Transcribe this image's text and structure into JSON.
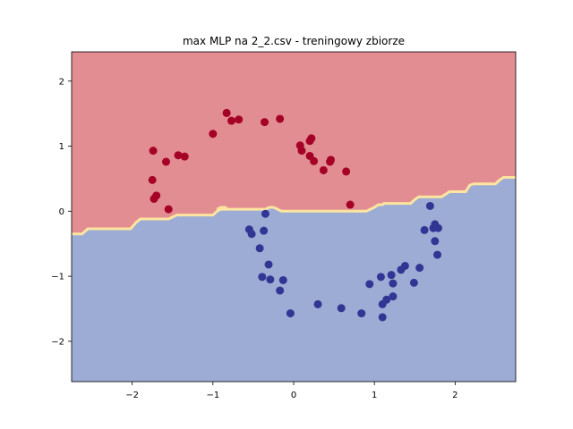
{
  "chart_data": {
    "type": "scatter",
    "title": "max MLP na 2_2.csv - treningowy zbiorze",
    "xlim": [
      -2.75,
      2.75
    ],
    "ylim": [
      -2.62,
      2.45
    ],
    "xticks": [
      -2,
      -1,
      0,
      1,
      2
    ],
    "yticks": [
      -2,
      -1,
      0,
      1,
      2
    ],
    "xtick_labels": [
      "−2",
      "−1",
      "0",
      "1",
      "2"
    ],
    "ytick_labels": [
      "−2",
      "−1",
      "0",
      "1",
      "2"
    ],
    "grid": false,
    "decision_boundary": {
      "x": [
        -2.75,
        -2.62,
        -2.55,
        -2.02,
        -1.97,
        -1.95,
        -1.93,
        -1.9,
        -1.88,
        -1.55,
        -1.5,
        -1.45,
        -1.43,
        -1.0,
        -0.95,
        -0.9,
        -0.85,
        -0.82,
        -0.85,
        -0.88,
        -0.9,
        -0.95,
        -0.35,
        -0.3,
        -0.25,
        -0.2,
        -0.15,
        0.9,
        0.95,
        1.0,
        1.05,
        1.1,
        1.1,
        1.12,
        1.15,
        1.45,
        1.5,
        1.55,
        1.6,
        1.83,
        1.88,
        1.93,
        1.97,
        2.13,
        2.18,
        2.23,
        2.5,
        2.55,
        2.6,
        2.75
      ],
      "y": [
        -0.35,
        -0.35,
        -0.27,
        -0.27,
        -0.2,
        -0.17,
        -0.15,
        -0.12,
        -0.12,
        -0.12,
        -0.09,
        -0.06,
        -0.06,
        -0.06,
        0.0,
        0.03,
        0.03,
        0.03,
        0.06,
        0.06,
        0.06,
        0.03,
        0.03,
        0.06,
        0.06,
        0.03,
        0.0,
        0.0,
        0.03,
        0.06,
        0.1,
        0.1,
        0.1,
        0.12,
        0.12,
        0.12,
        0.18,
        0.22,
        0.22,
        0.22,
        0.26,
        0.3,
        0.3,
        0.3,
        0.4,
        0.42,
        0.42,
        0.48,
        0.52,
        0.52
      ]
    },
    "series": [
      {
        "color": "#a50026",
        "points": [
          [
            -0.83,
            1.51
          ],
          [
            -0.77,
            1.39
          ],
          [
            -0.68,
            1.41
          ],
          [
            -0.36,
            1.37
          ],
          [
            -0.17,
            1.42
          ],
          [
            -1.0,
            1.19
          ],
          [
            -1.74,
            0.93
          ],
          [
            -1.58,
            0.76
          ],
          [
            -1.43,
            0.86
          ],
          [
            -1.35,
            0.84
          ],
          [
            -1.75,
            0.48
          ],
          [
            -1.7,
            0.24
          ],
          [
            -1.73,
            0.19
          ],
          [
            -1.55,
            0.03
          ],
          [
            0.08,
            1.01
          ],
          [
            0.1,
            0.93
          ],
          [
            0.2,
            1.08
          ],
          [
            0.22,
            1.12
          ],
          [
            0.2,
            0.85
          ],
          [
            0.25,
            0.77
          ],
          [
            0.37,
            0.63
          ],
          [
            0.45,
            0.76
          ],
          [
            0.46,
            0.79
          ],
          [
            0.65,
            0.61
          ],
          [
            0.7,
            0.1
          ]
        ]
      },
      {
        "color": "#313695",
        "points": [
          [
            -0.35,
            -0.04
          ],
          [
            -0.55,
            -0.28
          ],
          [
            -0.52,
            -0.35
          ],
          [
            -0.37,
            -0.3
          ],
          [
            -0.42,
            -0.57
          ],
          [
            -0.31,
            -0.82
          ],
          [
            -0.39,
            -1.01
          ],
          [
            -0.29,
            -1.05
          ],
          [
            -0.17,
            -1.22
          ],
          [
            -0.13,
            -1.06
          ],
          [
            -0.04,
            -1.57
          ],
          [
            0.3,
            -1.43
          ],
          [
            0.59,
            -1.49
          ],
          [
            0.84,
            -1.57
          ],
          [
            0.94,
            -1.12
          ],
          [
            1.08,
            -1.01
          ],
          [
            1.1,
            -1.43
          ],
          [
            1.1,
            -1.63
          ],
          [
            1.15,
            -1.36
          ],
          [
            1.21,
            -0.98
          ],
          [
            1.23,
            -1.11
          ],
          [
            1.23,
            -1.31
          ],
          [
            1.33,
            -0.9
          ],
          [
            1.38,
            -0.84
          ],
          [
            1.49,
            -1.1
          ],
          [
            1.56,
            -0.87
          ],
          [
            1.62,
            -0.29
          ],
          [
            1.69,
            0.08
          ],
          [
            1.73,
            -0.26
          ],
          [
            1.75,
            -0.2
          ],
          [
            1.75,
            -0.46
          ],
          [
            1.79,
            -0.26
          ],
          [
            1.78,
            -0.67
          ]
        ]
      }
    ],
    "regions": {
      "upper_color": "#e28d91",
      "lower_color": "#9cacd4",
      "boundary_color": "#fde5a0"
    }
  }
}
